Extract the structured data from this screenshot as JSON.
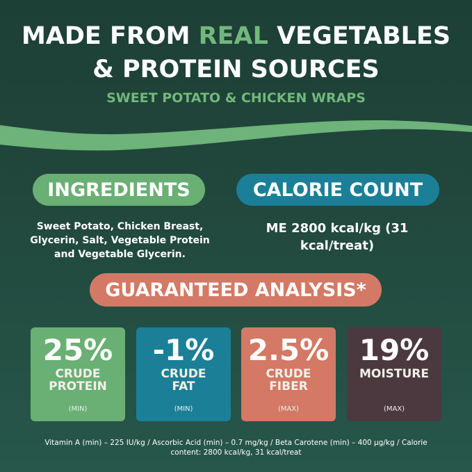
{
  "header": {
    "line1_a": "MADE FROM ",
    "line1_b": "REAL",
    "line1_c": " VEGETABLES",
    "line2": "& PROTEIN SOURCES",
    "subtitle": "SWEET POTATO & CHICKEN WRAPS"
  },
  "ingredients": {
    "label": "INGREDIENTS",
    "text": "Sweet Potato, Chicken Breast, Glycerin, Salt, Vegetable Protein and Vegetable Glycerin."
  },
  "calories": {
    "label": "CALORIE COUNT",
    "text": "ME 2800 kcal/kg (31 kcal/treat)"
  },
  "analysis": {
    "label": "GUARANTEED ANALYSIS*",
    "items": [
      {
        "value": "25%",
        "label1": "CRUDE",
        "label2": "PROTEIN",
        "qual": "(MIN)",
        "color": "#6aaf74"
      },
      {
        "value": "-1%",
        "label1": "CRUDE",
        "label2": "FAT",
        "qual": "(MIN)",
        "color": "#1b7f97"
      },
      {
        "value": "2.5%",
        "label1": "CRUDE",
        "label2": "FIBER",
        "qual": "(MAX)",
        "color": "#d47965"
      },
      {
        "value": "19%",
        "label1": "MOISTURE",
        "label2": "",
        "qual": "(MAX)",
        "color": "#4c393f"
      }
    ]
  },
  "footnote": "Vitamin A (min) – 225 IU/kg / Ascorbic Acid (min) – 0.7 mg/kg / Beta Carotene (min) – 400 µg/kg / Calorie content: 2800 kcal/kg, 31 kcal/treat",
  "colors": {
    "green": "#6aaf74",
    "teal": "#1b7f97",
    "salmon": "#d47965",
    "plum": "#4c393f",
    "background": "#21473c"
  }
}
